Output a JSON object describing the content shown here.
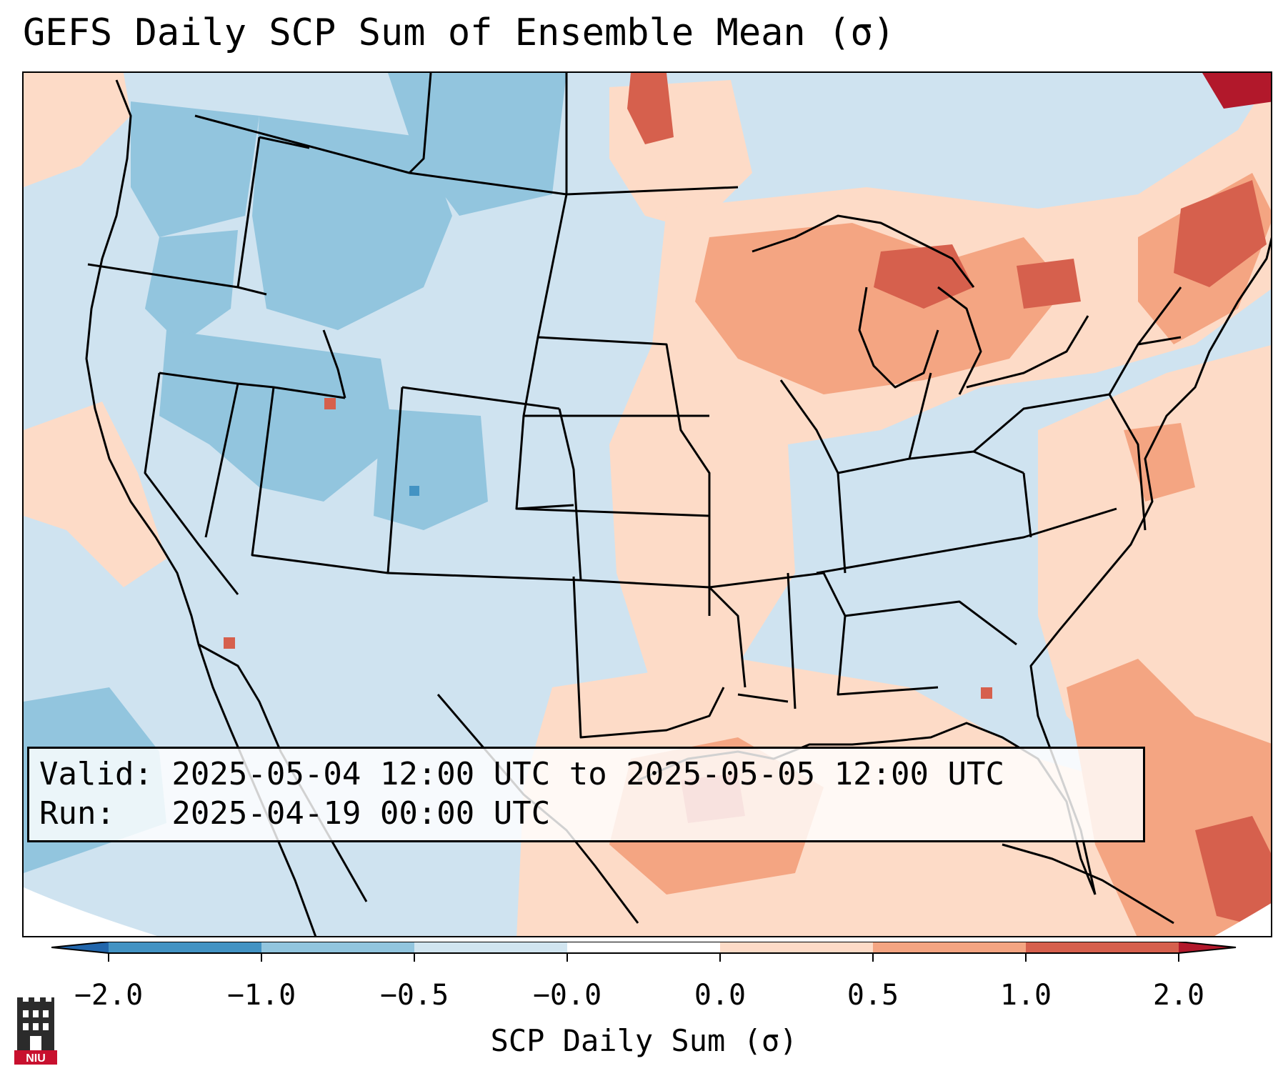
{
  "title": "GEFS Daily SCP Sum of Ensemble Mean (σ)",
  "info": {
    "valid": "Valid: 2025-05-04 12:00 UTC to 2025-05-05 12:00 UTC",
    "run": "Run:   2025-04-19 00:00 UTC"
  },
  "colorbar": {
    "label": "SCP Daily Sum (σ)",
    "ticks": [
      "−2.0",
      "−1.0",
      "−0.5",
      "−0.0",
      "0.0",
      "0.5",
      "1.0",
      "2.0"
    ],
    "colors": [
      "#2166ac",
      "#4393c3",
      "#92c5de",
      "#d1e5f0",
      "#fddbc7",
      "#f4a582",
      "#d6604d",
      "#b2182b"
    ],
    "extend": "both"
  },
  "map": {
    "background_color": "#cfe3f0",
    "outline_color": "#000000"
  },
  "logo": {
    "text": "NIU",
    "icon": "niu-castle-icon",
    "color": "#c8102e"
  }
}
